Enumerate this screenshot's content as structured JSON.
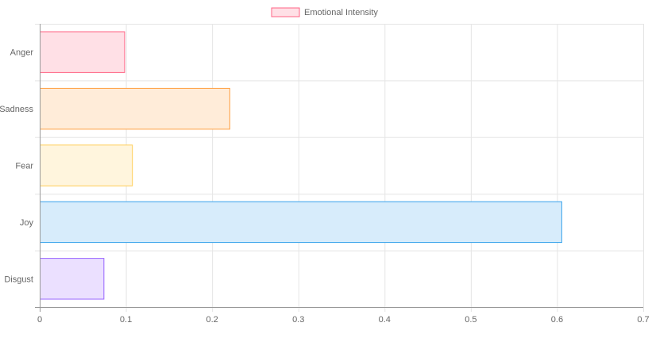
{
  "chart_data": {
    "type": "bar",
    "orientation": "horizontal",
    "categories": [
      "Anger",
      "Sadness",
      "Fear",
      "Joy",
      "Disgust"
    ],
    "series": [
      {
        "name": "Emotional Intensity",
        "values": [
          0.098,
          0.22,
          0.107,
          0.605,
          0.074
        ]
      }
    ],
    "xlim": [
      0,
      0.7
    ],
    "x_ticks": [
      "0",
      "0.1",
      "0.2",
      "0.3",
      "0.4",
      "0.5",
      "0.6",
      "0.7"
    ],
    "x_tick_values": [
      0,
      0.1,
      0.2,
      0.3,
      0.4,
      0.5,
      0.6,
      0.7
    ],
    "grid": true,
    "legend_position": "top-center",
    "colors": {
      "fills": [
        "#ffe0e6",
        "#ffecd9",
        "#fff5dd",
        "#d7ecfb",
        "#ebe0ff"
      ],
      "borders": [
        "#ff6384",
        "#ff9f40",
        "#ffcd56",
        "#36a2eb",
        "#9966ff"
      ],
      "legend_fill": "#ffe0e6",
      "legend_border": "#ff6384",
      "grid": "#e5e5e5",
      "axis": "#999999"
    }
  }
}
